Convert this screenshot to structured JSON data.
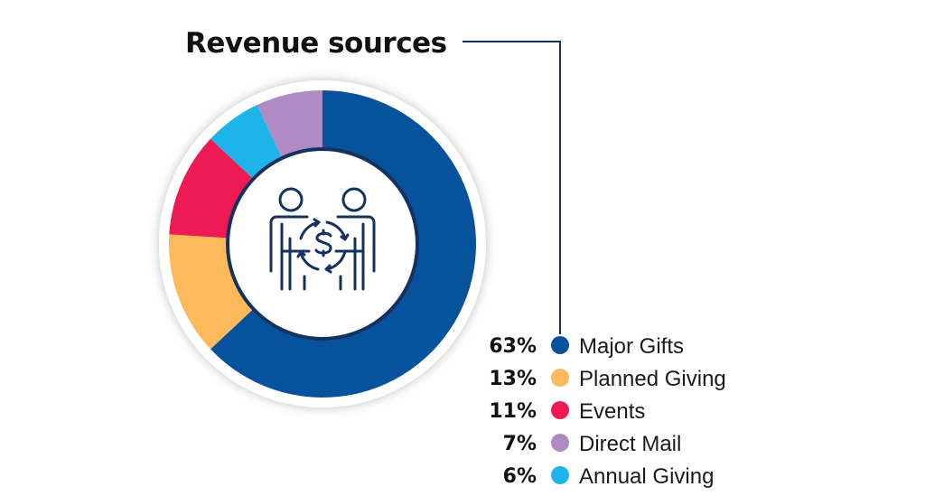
{
  "chart_data": {
    "type": "pie",
    "variant": "donut",
    "title": "Revenue sources",
    "center_icon": "people-exchanging-money-icon",
    "legend_position": "bottom-right",
    "slices": [
      {
        "label": "Major Gifts",
        "value": 63,
        "value_label": "63%",
        "color": "#07529C"
      },
      {
        "label": "Planned Giving",
        "value": 13,
        "value_label": "13%",
        "color": "#FDB95A"
      },
      {
        "label": "Events",
        "value": 11,
        "value_label": "11%",
        "color": "#ED1A53"
      },
      {
        "label": "Annual Giving",
        "value": 6,
        "value_label": "6%",
        "color": "#1EB4EA"
      },
      {
        "label": "Direct Mail",
        "value": 7,
        "value_label": "7%",
        "color": "#AE8CC3"
      }
    ],
    "legend_order": [
      "Major Gifts",
      "Planned Giving",
      "Events",
      "Direct Mail",
      "Annual Giving"
    ]
  },
  "colors": {
    "accent_line": "#14325F",
    "icon_stroke": "#14325F"
  }
}
